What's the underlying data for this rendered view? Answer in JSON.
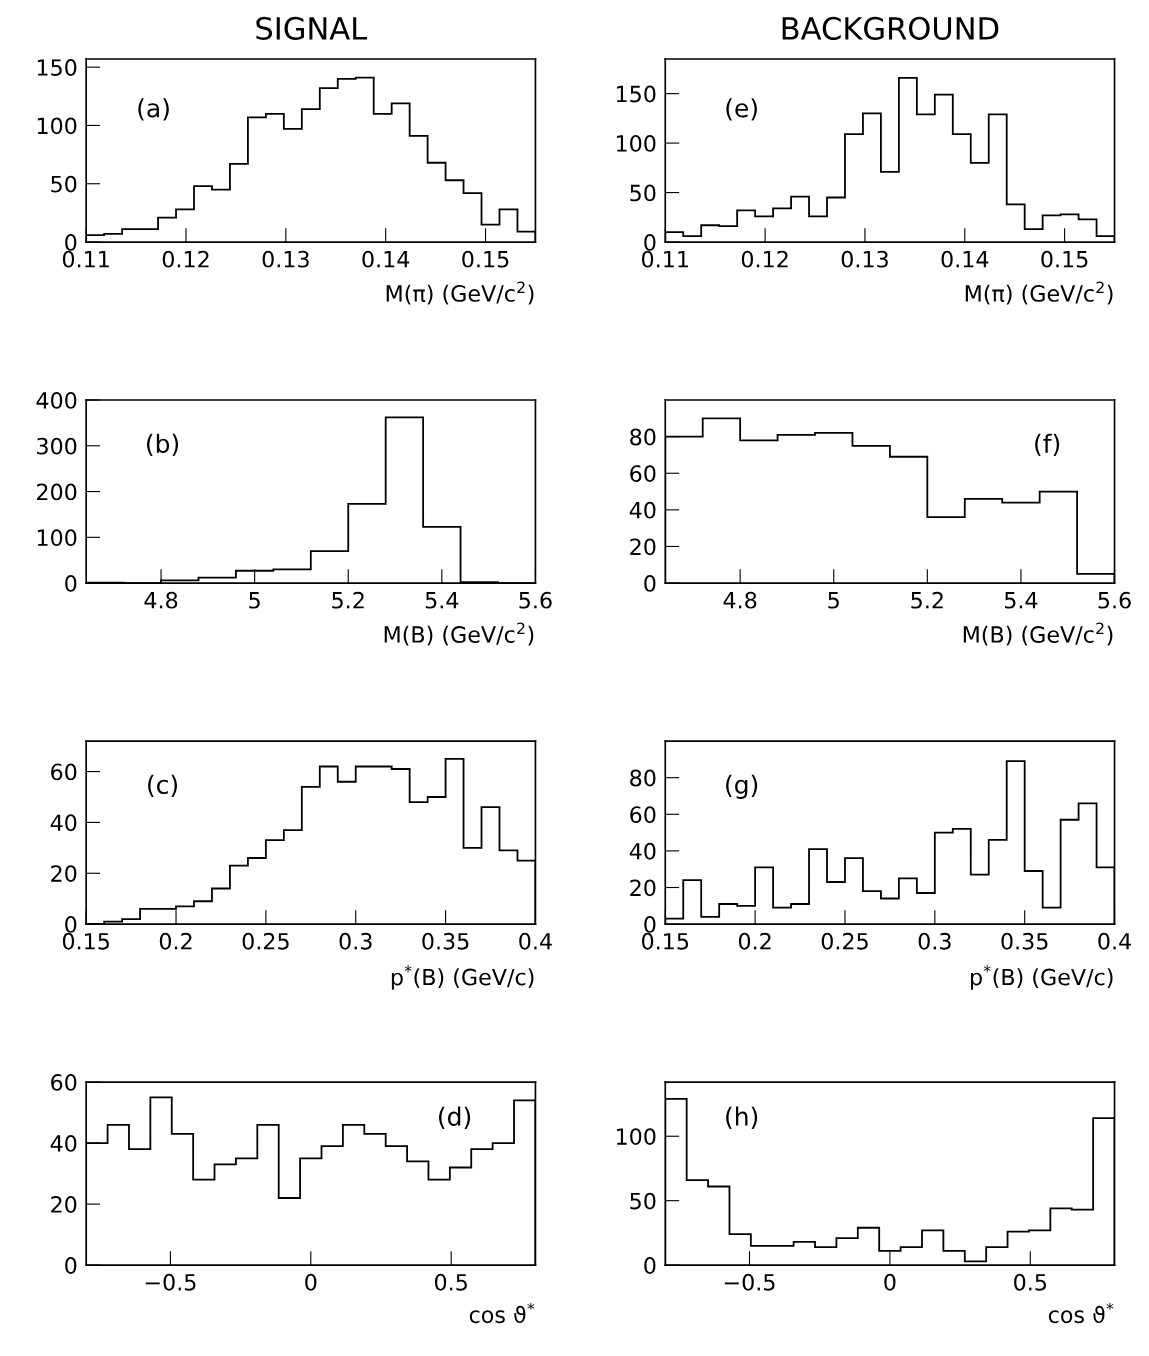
{
  "chart_data": [
    {
      "type": "histogram",
      "title": "SIGNAL",
      "xlabel": "M(π) (GeV/c$^{2}$)",
      "annotations": [
        "(a)"
      ],
      "color": "#000000",
      "bins": [
        0.11,
        0.1118,
        0.1136,
        0.1154,
        0.1172,
        0.119,
        0.1208,
        0.1226,
        0.1244,
        0.1262,
        0.128,
        0.1298,
        0.1316,
        0.1334,
        0.1352,
        0.137,
        0.1388,
        0.1406,
        0.1424,
        0.1442,
        0.146,
        0.1478,
        0.1496,
        0.1514,
        0.1532,
        0.155
      ],
      "values": [
        6,
        7,
        11,
        11,
        21,
        28,
        48,
        45,
        67,
        107,
        110,
        97,
        114,
        132,
        140,
        141,
        110,
        119,
        91,
        68,
        53,
        42,
        15,
        28,
        9
      ],
      "xlim": [
        0.11,
        0.155
      ],
      "xticks": [
        0.11,
        0.12,
        0.13,
        0.14,
        0.15
      ],
      "ylim": [
        0,
        157
      ],
      "yticks": [
        0,
        50,
        100,
        150
      ]
    },
    {
      "type": "histogram",
      "title": "BACKGROUND",
      "xlabel": "M(π) (GeV/c$^{2}$)",
      "annotations": [
        "(e)"
      ],
      "color": "#000000",
      "bins": [
        0.11,
        0.1118,
        0.1136,
        0.1154,
        0.1172,
        0.119,
        0.1208,
        0.1226,
        0.1244,
        0.1262,
        0.128,
        0.1298,
        0.1316,
        0.1334,
        0.1352,
        0.137,
        0.1388,
        0.1406,
        0.1424,
        0.1442,
        0.146,
        0.1478,
        0.1496,
        0.1514,
        0.1532,
        0.155
      ],
      "values": [
        10,
        6,
        17,
        16,
        32,
        26,
        34,
        46,
        26,
        45,
        109,
        130,
        71,
        166,
        129,
        149,
        109,
        80,
        129,
        38,
        13,
        27,
        28,
        23,
        6
      ],
      "xlim": [
        0.11,
        0.155
      ],
      "xticks": [
        0.11,
        0.12,
        0.13,
        0.14,
        0.15
      ],
      "ylim": [
        0,
        185
      ],
      "yticks": [
        0,
        50,
        100,
        150
      ]
    },
    {
      "type": "histogram",
      "xlabel": "M(B) (GeV/c$^{2}$)",
      "annotations": [
        "(b)"
      ],
      "color": "#000000",
      "bins": [
        4.64,
        4.72,
        4.8,
        4.88,
        4.96,
        5.04,
        5.12,
        5.2,
        5.28,
        5.36,
        5.44,
        5.52,
        5.6
      ],
      "values": [
        1,
        0,
        6,
        12,
        27,
        30,
        70,
        173,
        362,
        123,
        2,
        0
      ],
      "xlim": [
        4.64,
        5.6
      ],
      "xticks": [
        4.8,
        5,
        5.2,
        5.4,
        5.6
      ],
      "ylim": [
        0,
        400
      ],
      "yticks": [
        0,
        100,
        200,
        300,
        400
      ]
    },
    {
      "type": "histogram",
      "xlabel": "M(B) (GeV/c$^{2}$)",
      "annotations": [
        "(f)"
      ],
      "color": "#000000",
      "bins": [
        4.64,
        4.72,
        4.8,
        4.88,
        4.96,
        5.04,
        5.12,
        5.2,
        5.28,
        5.36,
        5.44,
        5.52,
        5.6
      ],
      "values": [
        80,
        90,
        78,
        81,
        82,
        75,
        69,
        36,
        46,
        44,
        50,
        5
      ],
      "xlim": [
        4.64,
        5.6
      ],
      "xticks": [
        4.8,
        5,
        5.2,
        5.4,
        5.6
      ],
      "ylim": [
        0,
        100
      ],
      "yticks": [
        0,
        20,
        40,
        60,
        80
      ]
    },
    {
      "type": "histogram",
      "xlabel": "p$^{*}$(B) (GeV/c)",
      "annotations": [
        "(c)"
      ],
      "color": "#000000",
      "bins": [
        0.15,
        0.16,
        0.17,
        0.18,
        0.19,
        0.2,
        0.21,
        0.22,
        0.23,
        0.24,
        0.25,
        0.26,
        0.27,
        0.28,
        0.29,
        0.3,
        0.31,
        0.32,
        0.33,
        0.34,
        0.35,
        0.36,
        0.37,
        0.38,
        0.39,
        0.4
      ],
      "values": [
        0,
        1,
        2,
        6,
        6,
        7,
        9,
        14,
        23,
        26,
        33,
        37,
        54,
        62,
        56,
        62,
        62,
        61,
        48,
        50,
        65,
        30,
        46,
        29,
        25
      ],
      "xlim": [
        0.15,
        0.4
      ],
      "xticks": [
        0.15,
        0.2,
        0.25,
        0.3,
        0.35,
        0.4
      ],
      "ylim": [
        0,
        72
      ],
      "yticks": [
        0,
        20,
        40,
        60
      ]
    },
    {
      "type": "histogram",
      "xlabel": "p$^{*}$(B) (GeV/c)",
      "annotations": [
        "(g)"
      ],
      "color": "#000000",
      "bins": [
        0.15,
        0.16,
        0.17,
        0.18,
        0.19,
        0.2,
        0.21,
        0.22,
        0.23,
        0.24,
        0.25,
        0.26,
        0.27,
        0.28,
        0.29,
        0.3,
        0.31,
        0.32,
        0.33,
        0.34,
        0.35,
        0.36,
        0.37,
        0.38,
        0.39,
        0.4
      ],
      "values": [
        3,
        24,
        4,
        11,
        10,
        31,
        9,
        11,
        41,
        23,
        36,
        18,
        14,
        25,
        17,
        50,
        52,
        27,
        46,
        89,
        29,
        9,
        57,
        66,
        31
      ],
      "xlim": [
        0.15,
        0.4
      ],
      "xticks": [
        0.15,
        0.2,
        0.25,
        0.3,
        0.35,
        0.4
      ],
      "ylim": [
        0,
        100
      ],
      "yticks": [
        0,
        20,
        40,
        60,
        80
      ]
    },
    {
      "type": "histogram",
      "xlabel": "cos ϑ$^{*}$",
      "annotations": [
        "(d)"
      ],
      "color": "#000000",
      "bins": [
        -0.8,
        -0.7238,
        -0.6476,
        -0.5714,
        -0.4952,
        -0.419,
        -0.3429,
        -0.2667,
        -0.1905,
        -0.1143,
        -0.0381,
        0.0381,
        0.1143,
        0.1905,
        0.2667,
        0.3429,
        0.419,
        0.4952,
        0.5714,
        0.6476,
        0.7238,
        0.8
      ],
      "values": [
        40,
        46,
        38,
        55,
        43,
        28,
        33,
        35,
        46,
        22,
        35,
        39,
        46,
        43,
        39,
        34,
        28,
        32,
        38,
        40,
        54
      ],
      "xlim": [
        -0.8,
        0.8
      ],
      "xticks": [
        {
          "value": -0.5,
          "label": "−0.5"
        },
        0,
        0.5
      ],
      "ylim": [
        0,
        60
      ],
      "yticks": [
        0,
        20,
        40,
        60
      ]
    },
    {
      "type": "histogram",
      "xlabel": "cos ϑ$^{*}$",
      "annotations": [
        "(h)"
      ],
      "color": "#000000",
      "bins": [
        -0.8,
        -0.7238,
        -0.6476,
        -0.5714,
        -0.4952,
        -0.419,
        -0.3429,
        -0.2667,
        -0.1905,
        -0.1143,
        -0.0381,
        0.0381,
        0.1143,
        0.1905,
        0.2667,
        0.3429,
        0.419,
        0.4952,
        0.5714,
        0.6476,
        0.7238,
        0.8
      ],
      "values": [
        129,
        66,
        61,
        24,
        15,
        15,
        18,
        14,
        21,
        29,
        11,
        14,
        27,
        11,
        3,
        14,
        26,
        27,
        44,
        43,
        114
      ],
      "xlim": [
        -0.8,
        0.8
      ],
      "xticks": [
        {
          "value": -0.5,
          "label": "−0.5"
        },
        0,
        0.5
      ],
      "ylim": [
        0,
        142
      ],
      "yticks": [
        0,
        50,
        100
      ]
    }
  ]
}
